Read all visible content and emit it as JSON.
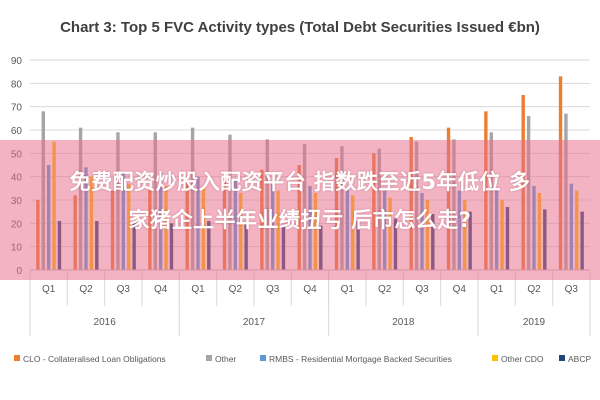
{
  "chart_data": {
    "type": "bar",
    "title": "Chart 3: Top 5 FVC Activity types (Total Debt Securities Issued €bn)",
    "ylim": [
      0,
      90
    ],
    "yticks": [
      0,
      10,
      20,
      30,
      40,
      50,
      60,
      70,
      80,
      90
    ],
    "grid": true,
    "legend_position": "bottom",
    "categories": [
      "Q1",
      "Q2",
      "Q3",
      "Q4",
      "Q1",
      "Q2",
      "Q3",
      "Q4",
      "Q1",
      "Q2",
      "Q3",
      "Q4",
      "Q1",
      "Q2",
      "Q3"
    ],
    "groups": [
      {
        "label": "2016",
        "count": 4
      },
      {
        "label": "2017",
        "count": 4
      },
      {
        "label": "2018",
        "count": 4
      },
      {
        "label": "2019",
        "count": 3
      }
    ],
    "series": [
      {
        "name": "CLO - Collateralised Loan Obligations",
        "color": "#ED7D31",
        "values": [
          30,
          32,
          34,
          35,
          38,
          40,
          43,
          45,
          48,
          50,
          57,
          61,
          68,
          75,
          83
        ]
      },
      {
        "name": "Other",
        "color": "#A5A5A5",
        "values": [
          68,
          61,
          59,
          59,
          61,
          58,
          56,
          54,
          53,
          52,
          55,
          56,
          59,
          66,
          67
        ]
      },
      {
        "name": "RMBS - Residential Mortgage Backed Securities",
        "color": "#5B9BD5",
        "values": [
          45,
          44,
          42,
          42,
          40,
          39,
          37,
          36,
          35,
          34,
          33,
          34,
          35,
          36,
          37
        ]
      },
      {
        "name": "Other CDO",
        "color": "#FFC000",
        "values": [
          55,
          40,
          37,
          36,
          36,
          33,
          34,
          33,
          32,
          31,
          30,
          30,
          30,
          33,
          34
        ]
      },
      {
        "name": "ABCP",
        "color": "#264478",
        "values": [
          21,
          21,
          20,
          20,
          21,
          20,
          19,
          19,
          21,
          22,
          24,
          25,
          27,
          26,
          25
        ]
      }
    ]
  },
  "overlay": {
    "line1": "免费配资炒股入配资平台 指数跌至近5年低位 多",
    "line2": "家猪企上半年业绩扭亏 后市怎么走?"
  }
}
